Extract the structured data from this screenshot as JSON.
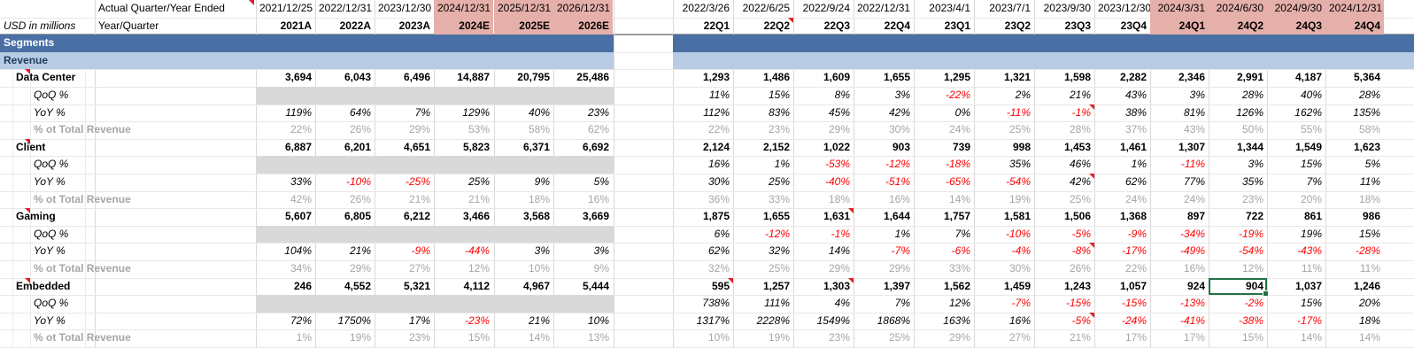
{
  "header": {
    "title_label": "Actual Quarter/Year Ended",
    "units_label": "USD in millions",
    "period_label": "Year/Quarter",
    "annual_dates": [
      "2021/12/25",
      "2022/12/31",
      "2023/12/30",
      "2024/12/31",
      "2025/12/31",
      "2026/12/31"
    ],
    "annual_periods": [
      "2021A",
      "2022A",
      "2023A",
      "2024E",
      "2025E",
      "2026E"
    ],
    "annual_forecast": [
      false,
      false,
      false,
      true,
      true,
      true
    ],
    "quarter_dates": [
      "2022/3/26",
      "2022/6/25",
      "2022/9/24",
      "2022/12/31",
      "2023/4/1",
      "2023/7/1",
      "2023/9/30",
      "2023/12/30",
      "2024/3/31",
      "2024/6/30",
      "2024/9/30",
      "2024/12/31"
    ],
    "quarter_periods": [
      "22Q1",
      "22Q2",
      "22Q3",
      "22Q4",
      "23Q1",
      "23Q2",
      "23Q3",
      "23Q4",
      "24Q1",
      "24Q2",
      "24Q3",
      "24Q4"
    ],
    "quarter_forecast": [
      false,
      false,
      false,
      false,
      false,
      false,
      false,
      false,
      true,
      true,
      true,
      true
    ]
  },
  "bands": {
    "segments_label": "Segments",
    "revenue_label": "Revenue",
    "segments_color": "#4a6fa5",
    "revenue_color": "#b8cce4",
    "forecast_color": "#e6b0aa",
    "negative_color": "#ff0000"
  },
  "segments": [
    {
      "name": "Data Center",
      "value": {
        "annual": [
          "3,694",
          "6,043",
          "6,496",
          "14,887",
          "20,795",
          "25,486"
        ],
        "quarterly": [
          "1,293",
          "1,486",
          "1,609",
          "1,655",
          "1,295",
          "1,321",
          "1,598",
          "2,282",
          "2,346",
          "2,991",
          "4,187",
          "5,364"
        ]
      },
      "qoq": {
        "label": "QoQ %",
        "quarterly": [
          "11%",
          "15%",
          "8%",
          "3%",
          "-22%",
          "2%",
          "21%",
          "43%",
          "3%",
          "28%",
          "40%",
          "28%"
        ]
      },
      "yoy": {
        "label": "YoY %",
        "annual": [
          "119%",
          "64%",
          "7%",
          "129%",
          "40%",
          "23%"
        ],
        "quarterly": [
          "112%",
          "83%",
          "45%",
          "42%",
          "0%",
          "-11%",
          "-1%",
          "38%",
          "81%",
          "126%",
          "162%",
          "135%"
        ]
      },
      "pct": {
        "label": "% ot Total Revenue",
        "annual": [
          "22%",
          "26%",
          "29%",
          "53%",
          "58%",
          "62%"
        ],
        "quarterly": [
          "22%",
          "23%",
          "29%",
          "30%",
          "24%",
          "25%",
          "28%",
          "37%",
          "43%",
          "50%",
          "55%",
          "58%"
        ]
      }
    },
    {
      "name": "Client",
      "value": {
        "annual": [
          "6,887",
          "6,201",
          "4,651",
          "5,823",
          "6,371",
          "6,692"
        ],
        "quarterly": [
          "2,124",
          "2,152",
          "1,022",
          "903",
          "739",
          "998",
          "1,453",
          "1,461",
          "1,307",
          "1,344",
          "1,549",
          "1,623"
        ]
      },
      "qoq": {
        "label": "QoQ %",
        "quarterly": [
          "16%",
          "1%",
          "-53%",
          "-12%",
          "-18%",
          "35%",
          "46%",
          "1%",
          "-11%",
          "3%",
          "15%",
          "5%"
        ]
      },
      "yoy": {
        "label": "YoY %",
        "annual": [
          "33%",
          "-10%",
          "-25%",
          "25%",
          "9%",
          "5%"
        ],
        "quarterly": [
          "30%",
          "25%",
          "-40%",
          "-51%",
          "-65%",
          "-54%",
          "42%",
          "62%",
          "77%",
          "35%",
          "7%",
          "11%"
        ]
      },
      "pct": {
        "label": "% ot Total Revenue",
        "annual": [
          "42%",
          "26%",
          "21%",
          "21%",
          "18%",
          "16%"
        ],
        "quarterly": [
          "36%",
          "33%",
          "18%",
          "16%",
          "14%",
          "19%",
          "25%",
          "24%",
          "24%",
          "23%",
          "20%",
          "18%"
        ]
      }
    },
    {
      "name": "Gaming",
      "value": {
        "annual": [
          "5,607",
          "6,805",
          "6,212",
          "3,466",
          "3,568",
          "3,669"
        ],
        "quarterly": [
          "1,875",
          "1,655",
          "1,631",
          "1,644",
          "1,757",
          "1,581",
          "1,506",
          "1,368",
          "897",
          "722",
          "861",
          "986"
        ]
      },
      "qoq": {
        "label": "QoQ %",
        "quarterly": [
          "6%",
          "-12%",
          "-1%",
          "1%",
          "7%",
          "-10%",
          "-5%",
          "-9%",
          "-34%",
          "-19%",
          "19%",
          "15%"
        ]
      },
      "yoy": {
        "label": "YoY %",
        "annual": [
          "104%",
          "21%",
          "-9%",
          "-44%",
          "3%",
          "3%"
        ],
        "quarterly": [
          "62%",
          "32%",
          "14%",
          "-7%",
          "-6%",
          "-4%",
          "-8%",
          "-17%",
          "-49%",
          "-54%",
          "-43%",
          "-28%"
        ]
      },
      "pct": {
        "label": "% ot Total Revenue",
        "annual": [
          "34%",
          "29%",
          "27%",
          "12%",
          "10%",
          "9%"
        ],
        "quarterly": [
          "32%",
          "25%",
          "29%",
          "29%",
          "33%",
          "30%",
          "26%",
          "22%",
          "16%",
          "12%",
          "11%",
          "11%"
        ]
      }
    },
    {
      "name": "Embedded",
      "value": {
        "annual": [
          "246",
          "4,552",
          "5,321",
          "4,112",
          "4,967",
          "5,444"
        ],
        "quarterly": [
          "595",
          "1,257",
          "1,303",
          "1,397",
          "1,562",
          "1,459",
          "1,243",
          "1,057",
          "924",
          "904",
          "1,037",
          "1,246"
        ]
      },
      "qoq": {
        "label": "QoQ %",
        "quarterly": [
          "738%",
          "111%",
          "4%",
          "7%",
          "12%",
          "-7%",
          "-15%",
          "-15%",
          "-13%",
          "-2%",
          "15%",
          "20%"
        ]
      },
      "yoy": {
        "label": "YoY %",
        "annual": [
          "72%",
          "1750%",
          "17%",
          "-23%",
          "21%",
          "10%"
        ],
        "quarterly": [
          "1317%",
          "2228%",
          "1549%",
          "1868%",
          "163%",
          "16%",
          "-5%",
          "-24%",
          "-41%",
          "-38%",
          "-17%",
          "18%"
        ]
      },
      "pct": {
        "label": "% ot Total Revenue",
        "annual": [
          "1%",
          "19%",
          "23%",
          "15%",
          "14%",
          "13%"
        ],
        "quarterly": [
          "10%",
          "19%",
          "23%",
          "25%",
          "29%",
          "27%",
          "21%",
          "17%",
          "17%",
          "15%",
          "14%",
          "14%"
        ]
      }
    }
  ]
}
